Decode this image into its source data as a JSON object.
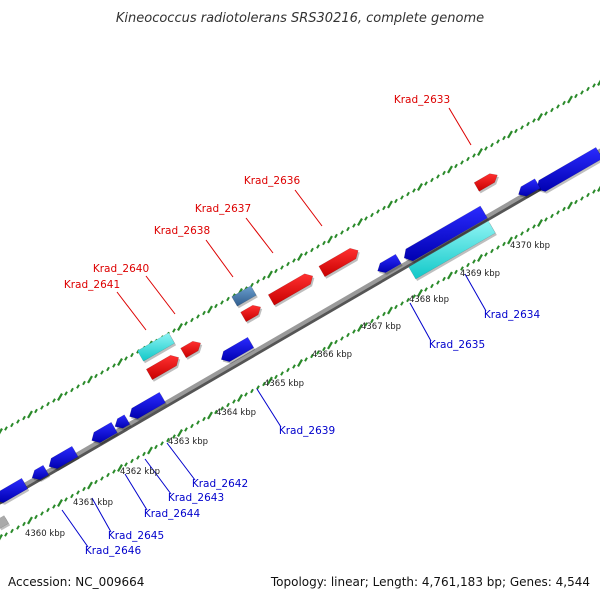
{
  "title": "Kineococcus radiotolerans SRS30216, complete genome",
  "accession": "Accession: NC_009664",
  "summary": "Topology: linear; Length: 4,761,183 bp; Genes: 4,544",
  "colors": {
    "background": "#ffffff",
    "backbone": "#8a8a8a",
    "forward_gene": "#ee0000",
    "reverse_gene": "#0000dd",
    "highlight_gene": "#22dddd",
    "selected_gene": "#4a7fb0",
    "other_gene": "#aaaaaa",
    "tick": "#2a8a2a",
    "forward_label": "#dd0000",
    "reverse_label": "#0000cc"
  },
  "ticks": [
    "4360 kbp",
    "4361 kbp",
    "4362 kbp",
    "4363 kbp",
    "4364 kbp",
    "4365 kbp",
    "4366 kbp",
    "4367 kbp",
    "4368 kbp",
    "4369 kbp",
    "4370 kbp"
  ],
  "forward_labels": [
    "Krad_2633",
    "Krad_2636",
    "Krad_2637",
    "Krad_2638",
    "Krad_2640",
    "Krad_2641"
  ],
  "reverse_labels": [
    "Krad_2634",
    "Krad_2635",
    "Krad_2639",
    "Krad_2642",
    "Krad_2643",
    "Krad_2644",
    "Krad_2645",
    "Krad_2646"
  ]
}
